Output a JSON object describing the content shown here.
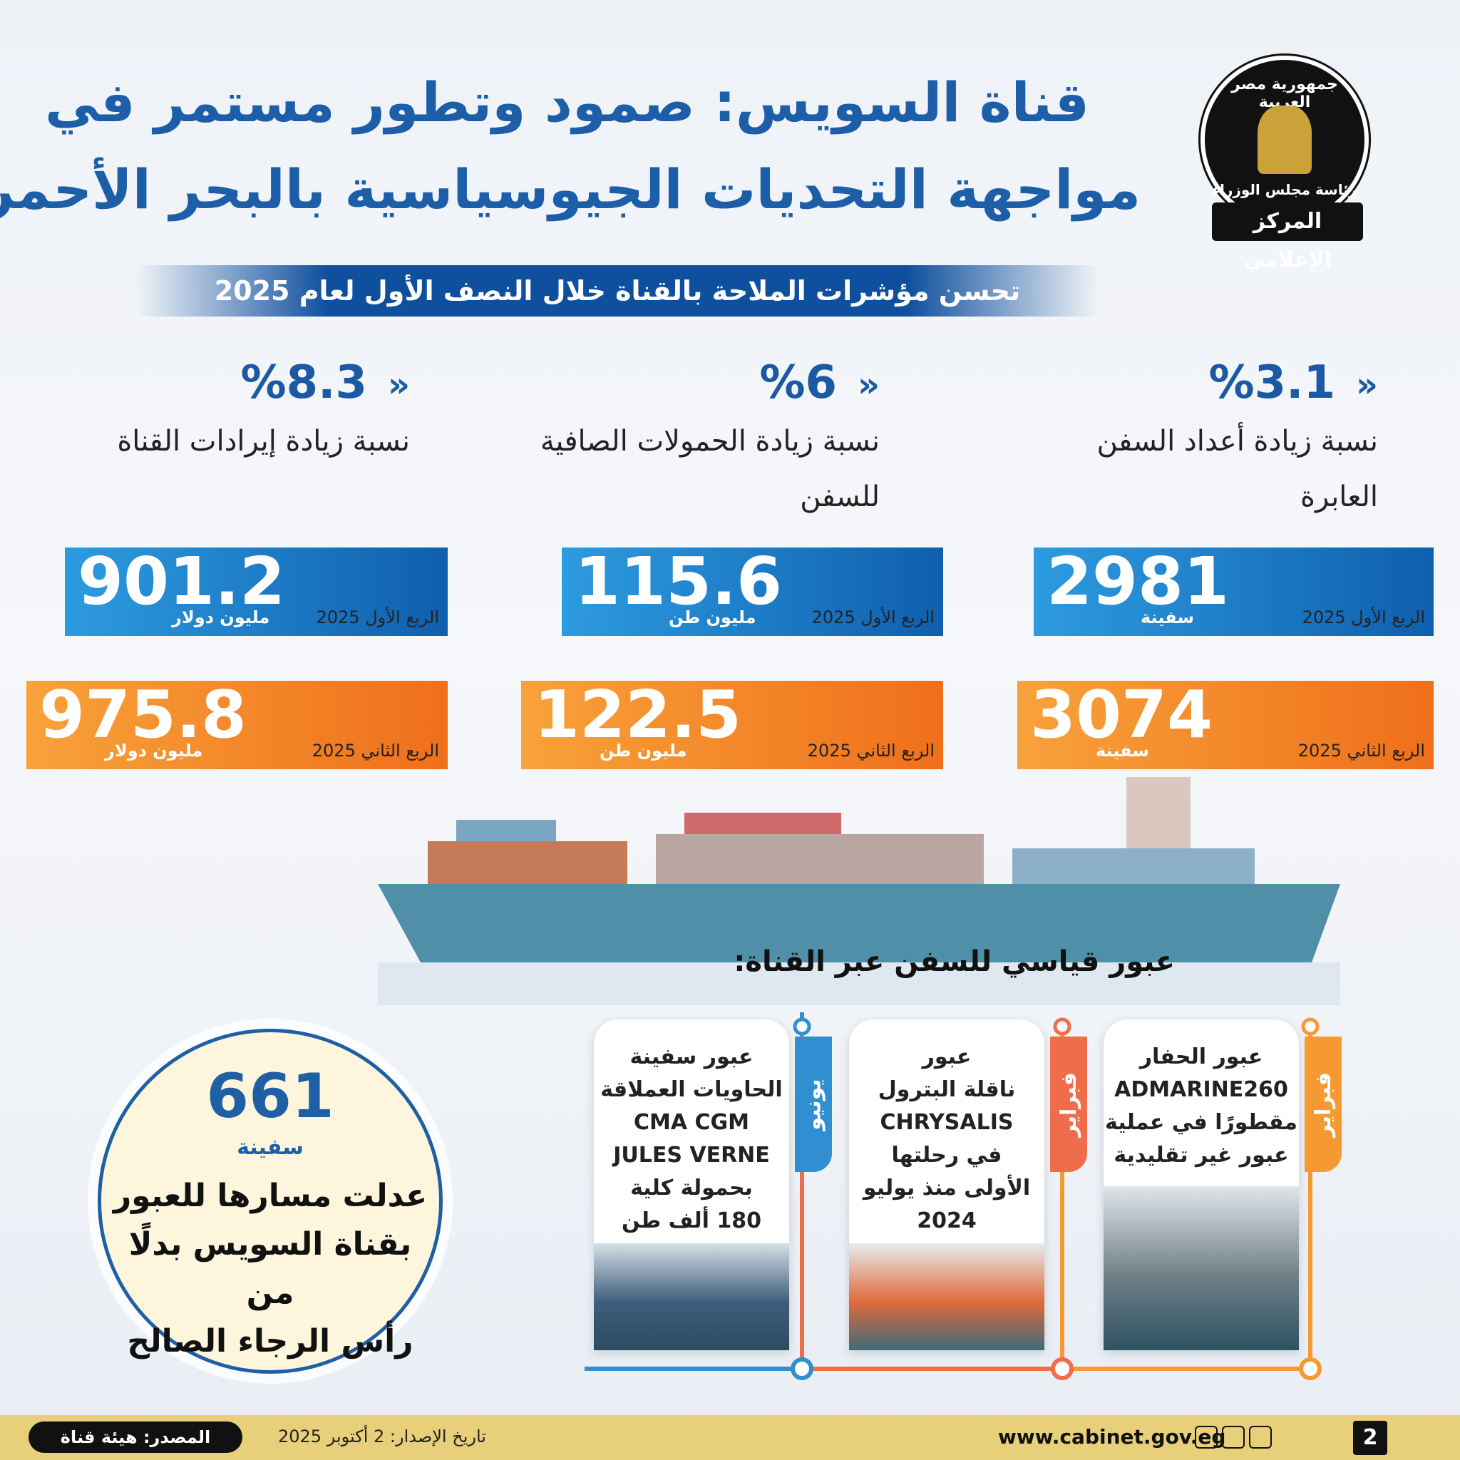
{
  "header": {
    "title_lines": [
      "قناة السويس: صمود وتطور مستمر في",
      "مواجهة التحديات الجيوسياسية بالبحر الأحمر"
    ],
    "logo": {
      "top": "جمهورية مصر العربية",
      "bottom": "رئاسة مجلس الوزراء",
      "ribbon": "المركز الإعلامي"
    }
  },
  "subtitle": "تحسن مؤشرات الملاحة بالقناة خلال النصف الأول لعام 2025",
  "indicators": [
    {
      "percent": "%3.1",
      "label": "نسبة زيادة أعداد السفن العابرة",
      "q1": {
        "value": "2981",
        "unit": "سفينة",
        "period": "الربع الأول 2025"
      },
      "q2": {
        "value": "3074",
        "unit": "سفينة",
        "period": "الربع الثاني 2025"
      }
    },
    {
      "percent": "%6",
      "label": "نسبة زيادة الحمولات الصافية للسفن",
      "q1": {
        "value": "115.6",
        "unit": "مليون  طن",
        "period": "الربع الأول 2025"
      },
      "q2": {
        "value": "122.5",
        "unit": "مليون  طن",
        "period": "الربع الثاني 2025"
      }
    },
    {
      "percent": "%8.3",
      "label": "نسبة زيادة إيرادات القناة",
      "q1": {
        "value": "901.2",
        "unit": "مليون دولار",
        "period": "الربع الأول 2025"
      },
      "q2": {
        "value": "975.8",
        "unit": "مليون دولار",
        "period": "الربع الثاني 2025"
      }
    }
  ],
  "records": {
    "heading": "عبور قياسي للسفن عبر القناة:",
    "cards": [
      {
        "tab": "فبراير",
        "lines": [
          "عبور الحفار",
          "ADMARINE260",
          "مقطورًا  في عملية",
          "عبور غير تقليدية"
        ]
      },
      {
        "tab": "فبراير",
        "lines": [
          "عبور",
          "ناقلة البترول",
          "CHRYSALIS",
          "في رحلتها",
          "الأولى منذ يوليو",
          "2024"
        ]
      },
      {
        "tab": "يونيو",
        "lines": [
          "عبور سفينة",
          "الحاويات العملاقة",
          "CMA CGM",
          "JULES VERNE",
          "بحمولة كلية",
          "180 ألف طن"
        ]
      }
    ]
  },
  "rerouted": {
    "number": "661",
    "unit": "سفينة",
    "lines": [
      "عدلت مسارها للعبور",
      "بقناة السويس بدلًا من",
      "رأس الرجاء الصالح"
    ]
  },
  "footer": {
    "source": "المصدر: هيئة قناة السويس",
    "date": "تاريخ الإصدار: 2 أكتوبر 2025",
    "url": "www.cabinet.gov.eg",
    "page": "2"
  }
}
